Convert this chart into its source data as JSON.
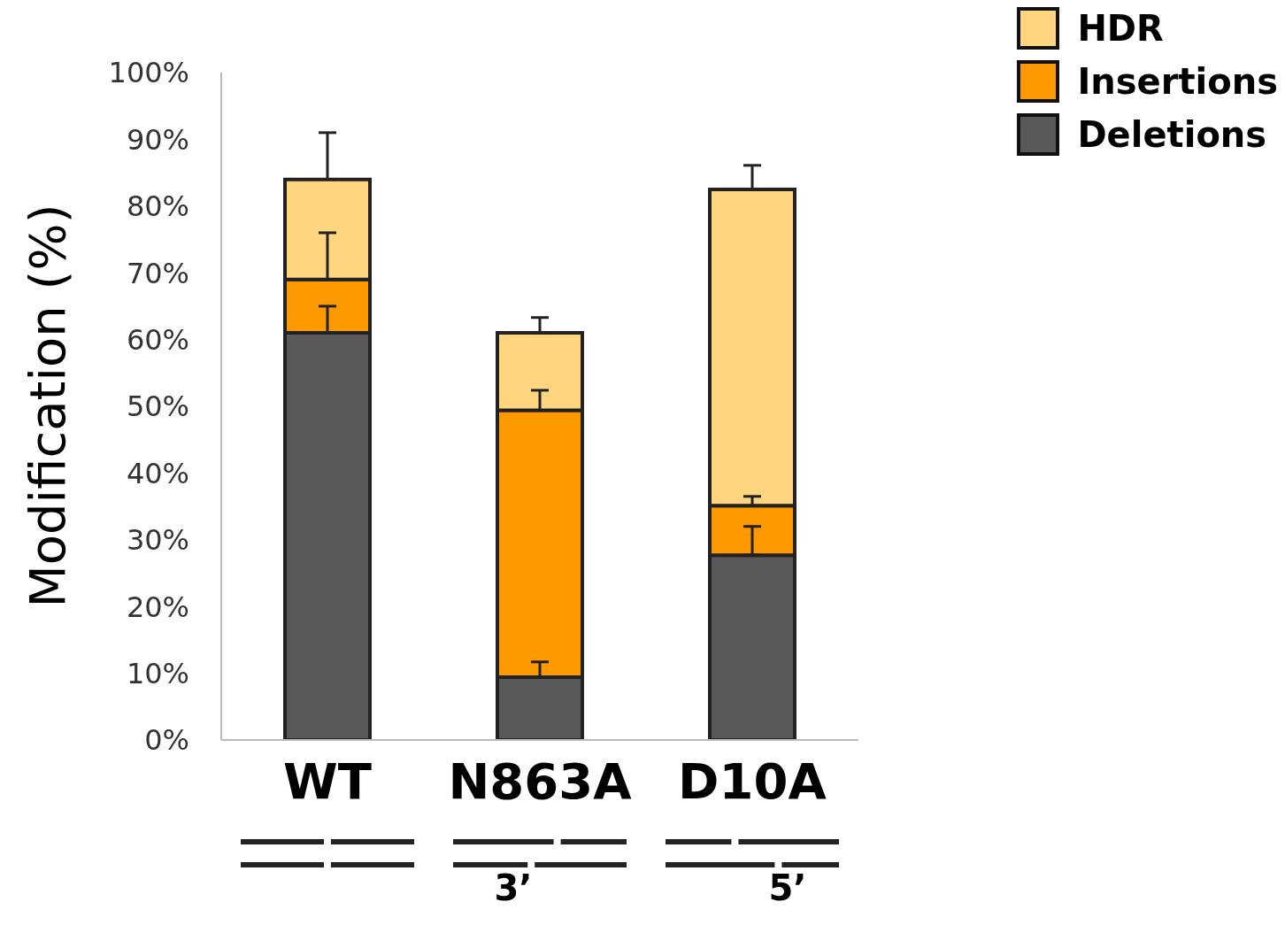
{
  "chart_data": {
    "type": "bar",
    "stacked": true,
    "ylabel": "Modification (%)",
    "categories": [
      "WT",
      "N863A",
      "D10A"
    ],
    "series": [
      {
        "name": "Deletions",
        "color": "#595959",
        "values": [
          61,
          9.4,
          27.7
        ],
        "errors": [
          [
            61,
            65
          ],
          [
            9.4,
            11.7
          ],
          [
            27.7,
            32
          ]
        ]
      },
      {
        "name": "Insertions",
        "color": "#ff9900",
        "values": [
          8,
          40,
          7.4
        ],
        "errors": [
          [
            69,
            76
          ],
          [
            49.4,
            52.4
          ],
          [
            35.1,
            36.5
          ]
        ]
      },
      {
        "name": "HDR",
        "color": "#ffd67f",
        "values": [
          15,
          11.6,
          47.4
        ],
        "errors": [
          [
            84,
            91
          ],
          [
            61,
            63.3
          ],
          [
            82.5,
            86.1
          ]
        ]
      }
    ],
    "ylim": [
      0,
      100
    ],
    "yticks": [
      {
        "value": 0,
        "label": "0%"
      },
      {
        "value": 10,
        "label": "10%"
      },
      {
        "value": 20,
        "label": "20%"
      },
      {
        "value": 30,
        "label": "30%"
      },
      {
        "value": 40,
        "label": "40%"
      },
      {
        "value": 50,
        "label": "50%"
      },
      {
        "value": 60,
        "label": "60%"
      },
      {
        "value": 70,
        "label": "70%"
      },
      {
        "value": 80,
        "label": "80%"
      },
      {
        "value": 90,
        "label": "90%"
      },
      {
        "value": 100,
        "label": "100%"
      }
    ],
    "legend": "top right",
    "annotations": [
      "3’",
      "5’"
    ]
  }
}
